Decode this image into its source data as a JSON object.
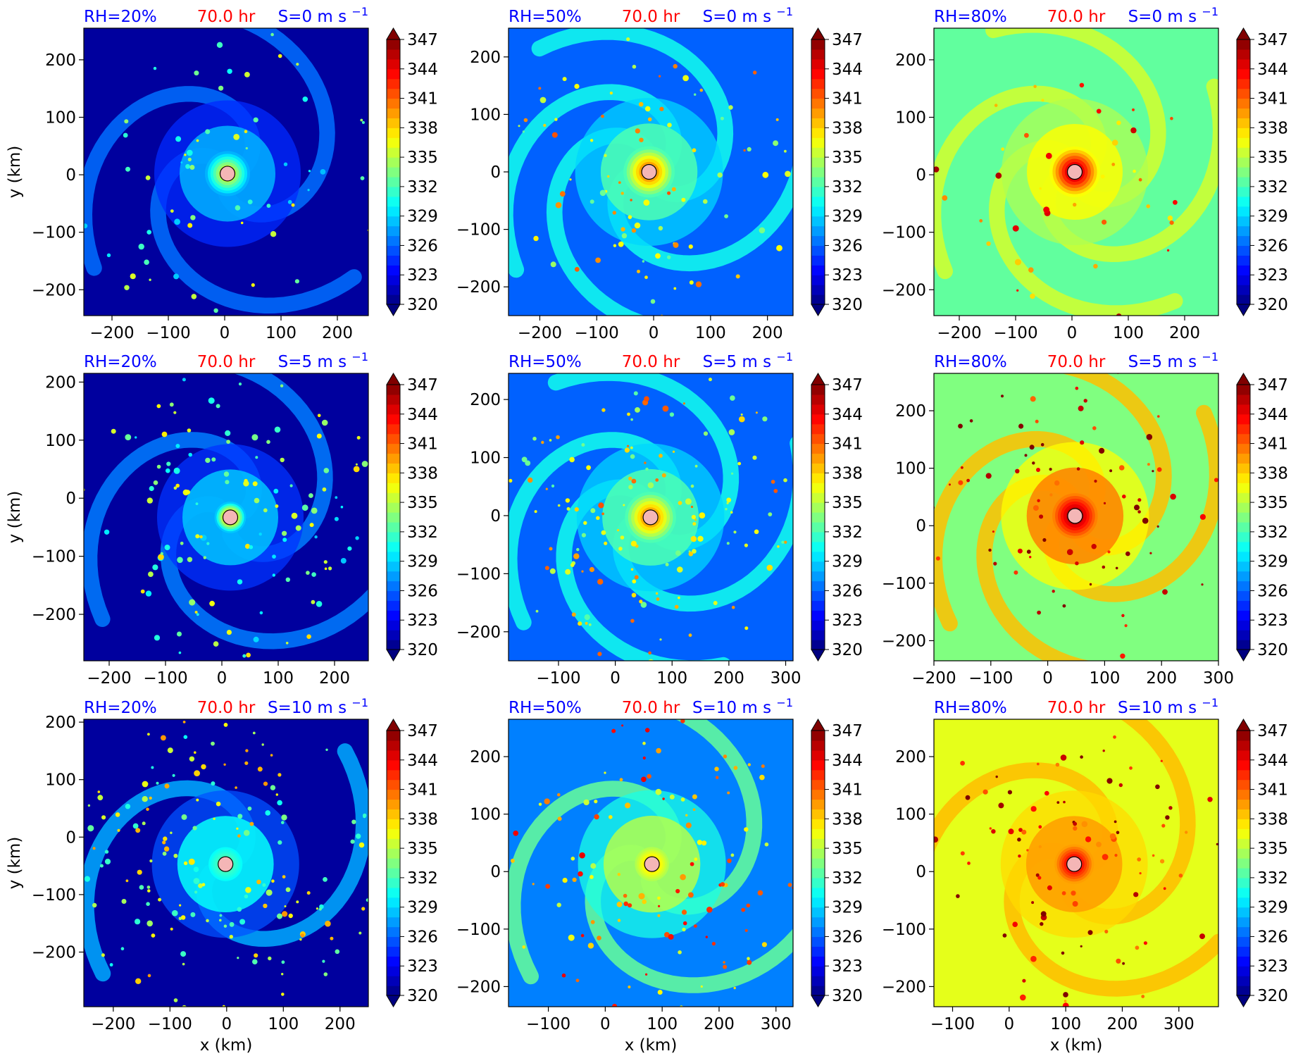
{
  "figure": {
    "colorbar_ticks": [
      "320",
      "323",
      "326",
      "329",
      "332",
      "335",
      "338",
      "341",
      "344",
      "347"
    ],
    "colormap": "jet",
    "marker_color": "#f4b6b6",
    "title_colors": {
      "rh": "#0000ff",
      "time": "#ff0000",
      "shear": "#0000ff"
    },
    "xlabel": "x (km)",
    "ylabel": "y (km)",
    "time_label": "70.0 hr"
  },
  "chart_data": [
    {
      "type": "heatmap",
      "rh": "RH=20%",
      "time": "70.0 hr",
      "shear": "S=0 m s",
      "shear_sup": "−1",
      "base_level": 0.03,
      "x_ticks": [
        "−200",
        "−100",
        "0",
        "100",
        "200"
      ],
      "x_tick_values": [
        -200,
        -100,
        0,
        100,
        200
      ],
      "xlim": [
        -250,
        255
      ],
      "y_ticks": [
        "200",
        "100",
        "0",
        "−100",
        "−200"
      ],
      "y_tick_values": [
        200,
        100,
        0,
        -100,
        -200
      ],
      "ylim": [
        -245,
        255
      ],
      "center": [
        5,
        2
      ],
      "core_radius": 40,
      "core_peak": 0.65,
      "inner_level": 0.3,
      "spiral_arms": 3,
      "scatter_cells": 60,
      "clim": [
        320,
        347
      ],
      "show_xlabel": false,
      "show_ylabel": true
    },
    {
      "type": "heatmap",
      "rh": "RH=50%",
      "time": "70.0 hr",
      "shear": "S=0 m s",
      "shear_sup": "−1",
      "base_level": 0.22,
      "x_ticks": [
        "−200",
        "−100",
        "0",
        "100",
        "200"
      ],
      "x_tick_values": [
        -200,
        -100,
        0,
        100,
        200
      ],
      "xlim": [
        -255,
        245
      ],
      "y_ticks": [
        "200",
        "100",
        "0",
        "−100",
        "−200"
      ],
      "y_tick_values": [
        200,
        100,
        0,
        -100,
        -200
      ],
      "ylim": [
        -250,
        250
      ],
      "center": [
        -8,
        0
      ],
      "core_radius": 45,
      "core_peak": 0.82,
      "inner_level": 0.45,
      "spiral_arms": 4,
      "scatter_cells": 90,
      "clim": [
        320,
        347
      ],
      "show_xlabel": false,
      "show_ylabel": false
    },
    {
      "type": "heatmap",
      "rh": "RH=80%",
      "time": "70.0 hr",
      "shear": "S=0 m s",
      "shear_sup": "−1",
      "base_level": 0.47,
      "x_ticks": [
        "−200",
        "−100",
        "0",
        "100",
        "200"
      ],
      "x_tick_values": [
        -200,
        -100,
        0,
        100,
        200
      ],
      "xlim": [
        -245,
        260
      ],
      "y_ticks": [
        "200",
        "100",
        "0",
        "−100",
        "−200"
      ],
      "y_tick_values": [
        200,
        100,
        0,
        -100,
        -200
      ],
      "ylim": [
        -245,
        255
      ],
      "center": [
        5,
        5
      ],
      "core_radius": 45,
      "core_peak": 1.0,
      "inner_level": 0.62,
      "spiral_arms": 4,
      "scatter_cells": 40,
      "clim": [
        320,
        347
      ],
      "show_xlabel": false,
      "show_ylabel": false
    },
    {
      "type": "heatmap",
      "rh": "RH=20%",
      "time": "70.0 hr",
      "shear": "S=5 m s",
      "shear_sup": "−1",
      "base_level": 0.03,
      "x_ticks": [
        "−200",
        "−100",
        "0",
        "100",
        "200"
      ],
      "x_tick_values": [
        -200,
        -100,
        0,
        100,
        200
      ],
      "xlim": [
        -245,
        260
      ],
      "y_ticks": [
        "200",
        "100",
        "0",
        "−100",
        "−200"
      ],
      "y_tick_values": [
        200,
        100,
        0,
        -100,
        -200
      ],
      "ylim": [
        -280,
        215
      ],
      "center": [
        15,
        -33
      ],
      "core_radius": 28,
      "core_peak": 0.82,
      "inner_level": 0.32,
      "spiral_arms": 3,
      "scatter_cells": 120,
      "clim": [
        320,
        347
      ],
      "show_xlabel": false,
      "show_ylabel": true
    },
    {
      "type": "heatmap",
      "rh": "RH=50%",
      "time": "70.0 hr",
      "shear": "S=5 m s",
      "shear_sup": "−1",
      "base_level": 0.22,
      "x_ticks": [
        "−100",
        "0",
        "100",
        "200",
        "300"
      ],
      "x_tick_values": [
        -100,
        0,
        100,
        200,
        300
      ],
      "xlim": [
        -188,
        313
      ],
      "y_ticks": [
        "200",
        "100",
        "0",
        "−100",
        "−200"
      ],
      "y_tick_values": [
        200,
        100,
        0,
        -100,
        -200
      ],
      "ylim": [
        -250,
        245
      ],
      "center": [
        62,
        -3
      ],
      "core_radius": 45,
      "core_peak": 0.8,
      "inner_level": 0.45,
      "spiral_arms": 4,
      "scatter_cells": 140,
      "clim": [
        320,
        347
      ],
      "show_xlabel": false,
      "show_ylabel": false
    },
    {
      "type": "heatmap",
      "rh": "RH=80%",
      "time": "70.0 hr",
      "shear": "S=5 m s",
      "shear_sup": "−1",
      "base_level": 0.5,
      "x_ticks": [
        "−200",
        "−100",
        "0",
        "100",
        "200",
        "300"
      ],
      "x_tick_values": [
        -200,
        -100,
        0,
        100,
        200,
        300
      ],
      "xlim": [
        -200,
        300
      ],
      "y_ticks": [
        "200",
        "100",
        "0",
        "−100",
        "−200"
      ],
      "y_tick_values": [
        200,
        100,
        0,
        -100,
        -200
      ],
      "ylim": [
        -235,
        265
      ],
      "center": [
        48,
        17
      ],
      "core_radius": 40,
      "core_peak": 1.0,
      "inner_level": 0.75,
      "spiral_arms": 4,
      "scatter_cells": 80,
      "clim": [
        320,
        347
      ],
      "show_xlabel": false,
      "show_ylabel": false
    },
    {
      "type": "heatmap",
      "rh": "RH=20%",
      "time": "70.0 hr",
      "shear": "S=10 m s",
      "shear_sup": "−1",
      "base_level": 0.03,
      "x_ticks": [
        "−200",
        "−100",
        "0",
        "100",
        "200"
      ],
      "x_tick_values": [
        -200,
        -100,
        0,
        100,
        200
      ],
      "xlim": [
        -252,
        250
      ],
      "y_ticks": [
        "200",
        "100",
        "0",
        "−100",
        "−200"
      ],
      "y_tick_values": [
        200,
        100,
        0,
        -100,
        -200
      ],
      "ylim": [
        -295,
        205
      ],
      "center": [
        -2,
        -47
      ],
      "core_radius": 30,
      "core_peak": 0.48,
      "inner_level": 0.38,
      "spiral_arms": 2,
      "scatter_cells": 160,
      "clim": [
        320,
        347
      ],
      "show_xlabel": true,
      "show_ylabel": true
    },
    {
      "type": "heatmap",
      "rh": "RH=50%",
      "time": "70.0 hr",
      "shear": "S=10 m s",
      "shear_sup": "−1",
      "base_level": 0.25,
      "x_ticks": [
        "−100",
        "0",
        "100",
        "200",
        "300"
      ],
      "x_tick_values": [
        -100,
        0,
        100,
        200,
        300
      ],
      "xlim": [
        -170,
        330
      ],
      "y_ticks": [
        "200",
        "100",
        "0",
        "−100",
        "−200"
      ],
      "y_tick_values": [
        200,
        100,
        0,
        -100,
        -200
      ],
      "ylim": [
        -235,
        265
      ],
      "center": [
        82,
        13
      ],
      "core_radius": 30,
      "core_peak": 0.7,
      "inner_level": 0.55,
      "spiral_arms": 3,
      "scatter_cells": 110,
      "clim": [
        320,
        347
      ],
      "show_xlabel": true,
      "show_ylabel": false
    },
    {
      "type": "heatmap",
      "rh": "RH=80%",
      "time": "70.0 hr",
      "shear": "S=10 m s",
      "shear_sup": "−1",
      "base_level": 0.6,
      "x_ticks": [
        "−100",
        "0",
        "100",
        "200",
        "300"
      ],
      "x_tick_values": [
        -100,
        0,
        100,
        200,
        300
      ],
      "xlim": [
        -133,
        370
      ],
      "y_ticks": [
        "200",
        "100",
        "0",
        "−100",
        "−200"
      ],
      "y_tick_values": [
        200,
        100,
        0,
        -100,
        -200
      ],
      "ylim": [
        -235,
        265
      ],
      "center": [
        115,
        13
      ],
      "core_radius": 35,
      "core_peak": 0.95,
      "inner_level": 0.72,
      "spiral_arms": 3,
      "scatter_cells": 90,
      "clim": [
        320,
        347
      ],
      "show_xlabel": true,
      "show_ylabel": false
    }
  ]
}
